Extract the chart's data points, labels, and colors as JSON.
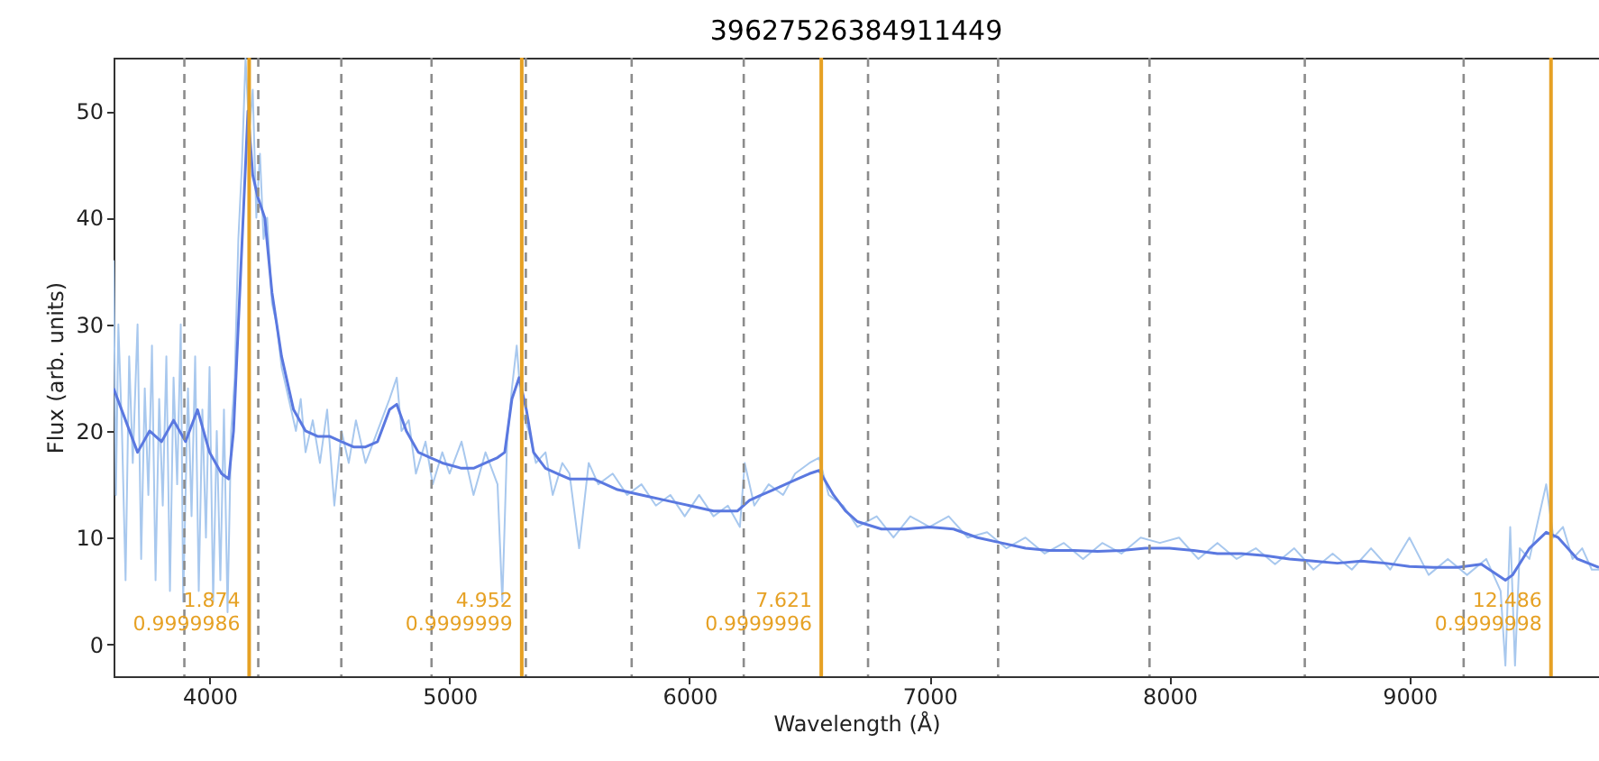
{
  "chart_data": {
    "type": "line",
    "title": "39627526384911449",
    "xlabel": "Wavelength (Å)",
    "ylabel": "Flux (arb. units)",
    "xlim": [
      3600,
      9790
    ],
    "ylim": [
      -3,
      55
    ],
    "xticks": [
      4000,
      5000,
      6000,
      7000,
      8000,
      9000
    ],
    "yticks": [
      0,
      10,
      20,
      30,
      40,
      50
    ],
    "grid": false,
    "series": [
      {
        "color": "#a8c8ee",
        "x": [
          3600,
          3610,
          3620,
          3635,
          3650,
          3665,
          3680,
          3700,
          3715,
          3730,
          3745,
          3760,
          3775,
          3790,
          3805,
          3820,
          3835,
          3850,
          3865,
          3880,
          3890,
          3910,
          3925,
          3940,
          3955,
          3970,
          3985,
          4000,
          4015,
          4030,
          4045,
          4060,
          4075,
          4090,
          4105,
          4120,
          4135,
          4150,
          4165,
          4180,
          4195,
          4210,
          4225,
          4240,
          4260,
          4280,
          4300,
          4330,
          4360,
          4380,
          4400,
          4430,
          4460,
          4490,
          4520,
          4550,
          4580,
          4610,
          4650,
          4700,
          4750,
          4780,
          4800,
          4830,
          4860,
          4900,
          4930,
          4970,
          5000,
          5050,
          5100,
          5150,
          5200,
          5220,
          5240,
          5260,
          5280,
          5300,
          5330,
          5360,
          5400,
          5430,
          5470,
          5500,
          5540,
          5580,
          5620,
          5680,
          5740,
          5800,
          5860,
          5920,
          5980,
          6040,
          6100,
          6160,
          6210,
          6230,
          6270,
          6330,
          6390,
          6440,
          6500,
          6540,
          6580,
          6640,
          6700,
          6780,
          6850,
          6920,
          7000,
          7080,
          7160,
          7240,
          7320,
          7400,
          7480,
          7560,
          7640,
          7720,
          7800,
          7880,
          7960,
          8040,
          8120,
          8200,
          8280,
          8360,
          8440,
          8520,
          8600,
          8680,
          8760,
          8840,
          8920,
          9000,
          9080,
          9160,
          9240,
          9320,
          9380,
          9400,
          9420,
          9440,
          9460,
          9500,
          9540,
          9570,
          9600,
          9640,
          9680,
          9720,
          9760,
          9790
        ],
        "values": [
          36,
          14,
          30,
          20,
          6,
          27,
          17,
          30,
          8,
          24,
          14,
          28,
          6,
          23,
          13,
          27,
          5,
          25,
          15,
          30,
          4,
          24,
          12,
          27,
          5,
          22,
          10,
          26,
          4,
          20,
          6,
          22,
          3,
          20,
          25,
          38,
          45,
          55,
          48,
          52,
          40,
          46,
          38,
          40,
          32,
          30,
          26,
          23,
          20,
          23,
          18,
          21,
          17,
          22,
          13,
          20,
          17,
          21,
          17,
          20,
          23,
          25,
          20,
          21,
          16,
          19,
          15,
          18,
          16,
          19,
          14,
          18,
          15,
          4,
          19,
          24,
          28,
          22,
          20,
          17,
          18,
          14,
          17,
          16,
          9,
          17,
          15,
          16,
          14,
          15,
          13,
          14,
          12,
          14,
          12,
          13,
          11,
          17,
          13,
          15,
          14,
          16,
          17,
          17.5,
          14,
          13,
          11,
          12,
          10,
          12,
          11,
          12,
          10,
          10.5,
          9,
          10,
          8.5,
          9.5,
          8,
          9.5,
          8.5,
          10,
          9.5,
          10,
          8,
          9.5,
          8,
          9,
          7.5,
          9,
          7,
          8.5,
          7,
          9,
          7,
          10,
          6.5,
          8,
          6.5,
          8,
          5,
          -2,
          11,
          -2,
          9,
          8,
          12,
          15,
          10,
          11,
          8,
          9,
          7,
          7
        ]
      },
      {
        "color": "#5a78e0",
        "x": [
          3600,
          3650,
          3700,
          3750,
          3800,
          3850,
          3900,
          3950,
          4000,
          4050,
          4080,
          4100,
          4130,
          4160,
          4180,
          4200,
          4230,
          4260,
          4300,
          4350,
          4400,
          4450,
          4500,
          4550,
          4600,
          4650,
          4700,
          4750,
          4780,
          4820,
          4870,
          4920,
          4970,
          5050,
          5100,
          5150,
          5200,
          5230,
          5260,
          5290,
          5320,
          5350,
          5400,
          5450,
          5500,
          5600,
          5700,
          5800,
          5900,
          6000,
          6100,
          6200,
          6250,
          6300,
          6350,
          6400,
          6450,
          6500,
          6540,
          6600,
          6650,
          6700,
          6800,
          6900,
          7000,
          7100,
          7200,
          7300,
          7400,
          7500,
          7600,
          7700,
          7800,
          7900,
          8000,
          8100,
          8200,
          8300,
          8400,
          8500,
          8600,
          8700,
          8800,
          8900,
          9000,
          9100,
          9200,
          9300,
          9400,
          9430,
          9500,
          9570,
          9620,
          9700,
          9790
        ],
        "values": [
          24,
          21,
          18,
          20,
          19,
          21,
          19,
          22,
          18,
          16,
          15.5,
          20,
          35,
          50,
          44,
          42,
          40,
          33,
          27,
          22,
          20,
          19.5,
          19.5,
          19,
          18.5,
          18.5,
          19,
          22,
          22.5,
          20,
          18,
          17.5,
          17,
          16.5,
          16.5,
          17,
          17.5,
          18,
          23,
          25,
          22,
          18,
          16.5,
          16,
          15.5,
          15.5,
          14.5,
          14,
          13.5,
          13,
          12.5,
          12.5,
          13.5,
          14,
          14.5,
          15,
          15.5,
          16,
          16.3,
          14,
          12.5,
          11.5,
          10.8,
          10.8,
          11,
          10.8,
          10,
          9.5,
          9,
          8.8,
          8.8,
          8.7,
          8.8,
          9,
          9,
          8.8,
          8.5,
          8.5,
          8.3,
          8,
          7.8,
          7.6,
          7.8,
          7.6,
          7.3,
          7.2,
          7.2,
          7.5,
          6,
          6.5,
          9,
          10.5,
          10,
          8,
          7.2
        ]
      }
    ],
    "ref_lines": [
      {
        "axis": "x",
        "value": 3895,
        "color": "#8c8c8c",
        "line_style": "dashed"
      },
      {
        "axis": "x",
        "value": 4203,
        "color": "#8c8c8c",
        "line_style": "dashed"
      },
      {
        "axis": "x",
        "value": 4549,
        "color": "#8c8c8c",
        "line_style": "dashed"
      },
      {
        "axis": "x",
        "value": 4925,
        "color": "#8c8c8c",
        "line_style": "dashed"
      },
      {
        "axis": "x",
        "value": 5318,
        "color": "#8c8c8c",
        "line_style": "dashed"
      },
      {
        "axis": "x",
        "value": 5759,
        "color": "#8c8c8c",
        "line_style": "dashed"
      },
      {
        "axis": "x",
        "value": 6226,
        "color": "#8c8c8c",
        "line_style": "dashed"
      },
      {
        "axis": "x",
        "value": 6744,
        "color": "#8c8c8c",
        "line_style": "dashed"
      },
      {
        "axis": "x",
        "value": 7286,
        "color": "#8c8c8c",
        "line_style": "dashed"
      },
      {
        "axis": "x",
        "value": 7917,
        "color": "#8c8c8c",
        "line_style": "dashed"
      },
      {
        "axis": "x",
        "value": 8564,
        "color": "#8c8c8c",
        "line_style": "dashed"
      },
      {
        "axis": "x",
        "value": 9226,
        "color": "#8c8c8c",
        "line_style": "dashed"
      },
      {
        "axis": "x",
        "value": 4165,
        "color": "#e6a124",
        "line_style": "solid"
      },
      {
        "axis": "x",
        "value": 5301,
        "color": "#e6a124",
        "line_style": "solid"
      },
      {
        "axis": "x",
        "value": 6549,
        "color": "#e6a124",
        "line_style": "solid"
      },
      {
        "axis": "x",
        "value": 9590,
        "color": "#e6a124",
        "line_style": "solid"
      }
    ],
    "annotations": [
      {
        "text": "1.874\n0.9999986",
        "x": 4165,
        "y": 4
      },
      {
        "text": "4.952\n0.9999999",
        "x": 5301,
        "y": 4
      },
      {
        "text": "7.621\n0.9999996",
        "x": 6549,
        "y": 4
      },
      {
        "text": "12.486\n0.9999998",
        "x": 9590,
        "y": 4
      }
    ]
  }
}
